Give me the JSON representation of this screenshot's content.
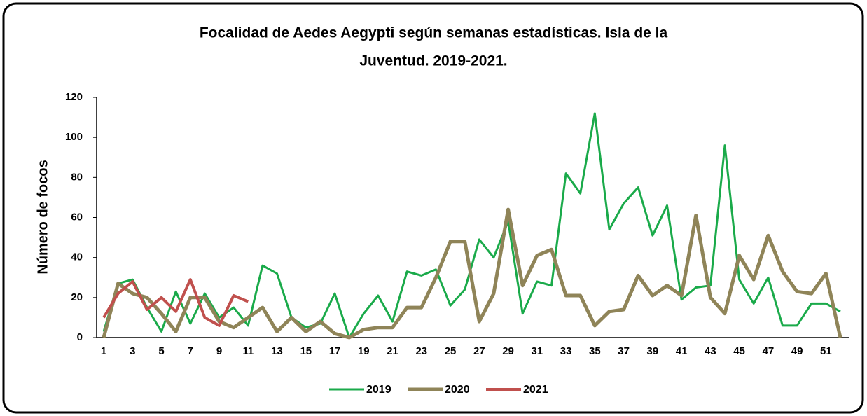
{
  "chart_data": {
    "type": "line",
    "title": [
      "Focalidad de Aedes Aegypti según semanas estadísticas. Isla de la",
      "Juventud. 2019-2021."
    ],
    "y_label": "Número de focos",
    "categories": [
      "1",
      null,
      "3",
      null,
      "5",
      null,
      "7",
      null,
      "9",
      null,
      "11",
      null,
      "13",
      null,
      "15",
      null,
      "17",
      null,
      "19",
      null,
      "21",
      null,
      "23",
      null,
      "25",
      null,
      "27",
      null,
      "29",
      null,
      "31",
      null,
      "33",
      null,
      "35",
      null,
      "37",
      null,
      "39",
      null,
      "41",
      null,
      "43",
      null,
      "45",
      null,
      "47",
      null,
      "49",
      null,
      "51",
      null
    ],
    "ylim": [
      0,
      120
    ],
    "yticks": [
      0,
      20,
      40,
      60,
      80,
      100,
      120
    ],
    "grid": false,
    "legend": "bottom",
    "series": [
      {
        "name": "2019",
        "color": "#1aaa4a",
        "width": 3,
        "values": [
          3,
          27,
          29,
          15,
          3,
          23,
          7,
          22,
          10,
          15,
          6,
          36,
          32,
          10,
          5,
          7,
          22,
          0,
          12,
          21,
          8,
          33,
          31,
          34,
          16,
          24,
          49,
          40,
          58,
          12,
          28,
          26,
          82,
          72,
          112,
          54,
          67,
          75,
          51,
          66,
          19,
          25,
          26,
          96,
          29,
          17,
          30,
          6,
          6,
          17,
          17,
          13
        ]
      },
      {
        "name": "2020",
        "color": "#8f8458",
        "width": 5,
        "values": [
          0,
          27,
          22,
          20,
          12,
          3,
          20,
          20,
          8,
          5,
          10,
          15,
          3,
          10,
          3,
          8,
          2,
          0,
          4,
          5,
          5,
          15,
          15,
          30,
          48,
          48,
          8,
          22,
          64,
          26,
          41,
          44,
          21,
          21,
          6,
          13,
          14,
          31,
          21,
          26,
          21,
          61,
          20,
          12,
          41,
          29,
          51,
          33,
          23,
          22,
          32,
          0
        ]
      },
      {
        "name": "2021",
        "color": "#c0504d",
        "width": 4,
        "values": [
          10,
          22,
          28,
          14,
          20,
          13,
          29,
          10,
          6,
          21,
          18,
          null,
          null,
          null,
          null,
          null,
          null,
          null,
          null,
          null,
          null,
          null,
          null,
          null,
          null,
          null,
          null,
          null,
          null,
          null,
          null,
          null,
          null,
          null,
          null,
          null,
          null,
          null,
          null,
          null,
          null,
          null,
          null,
          null,
          null,
          null,
          null,
          null,
          null,
          null,
          null,
          null
        ]
      }
    ]
  }
}
